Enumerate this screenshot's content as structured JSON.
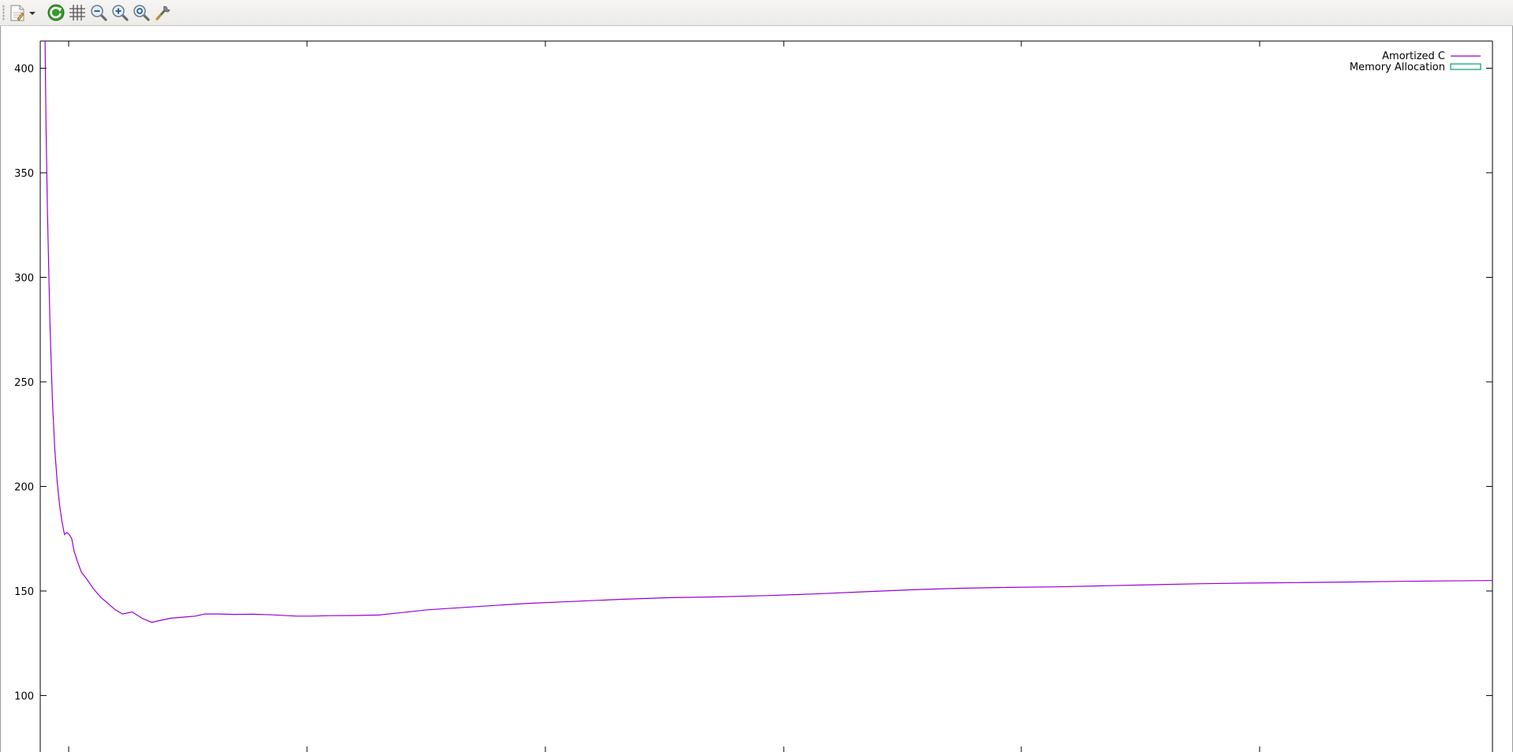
{
  "toolbar": {
    "buttons": [
      {
        "name": "export-button",
        "icon": "document-export-icon"
      },
      {
        "name": "replot-button",
        "icon": "refresh-icon"
      },
      {
        "name": "grid-button",
        "icon": "grid-icon"
      },
      {
        "name": "zoom-out-button",
        "icon": "zoom-out-icon"
      },
      {
        "name": "zoom-in-button",
        "icon": "zoom-in-icon"
      },
      {
        "name": "zoom-reset-button",
        "icon": "zoom-reset-icon"
      },
      {
        "name": "settings-button",
        "icon": "wrench-icon"
      }
    ]
  },
  "chart_data": {
    "type": "line",
    "title": "",
    "xlabel": "",
    "ylabel": "",
    "ylim": [
      73,
      413
    ],
    "xlim": [
      0,
      300
    ],
    "yticks": [
      100,
      150,
      200,
      250,
      300,
      350,
      400
    ],
    "grid": false,
    "legend_position": "top-right",
    "series": [
      {
        "name": "Amortized C",
        "color": "#9400d3",
        "style": "line",
        "x": [
          1.0,
          1.2,
          1.5,
          2.0,
          2.5,
          3.0,
          3.5,
          4.0,
          4.5,
          5.0,
          5.5,
          6.0,
          6.5,
          7.0,
          7.7,
          8.5,
          9.5,
          11,
          12.5,
          14,
          15.5,
          17,
          19,
          21,
          23,
          25,
          27,
          29.5,
          32,
          34,
          37,
          40,
          44,
          48,
          51,
          53,
          56,
          60,
          65,
          70,
          80,
          90,
          100,
          110,
          120,
          130,
          140,
          150,
          160,
          170,
          180,
          190,
          200,
          210,
          220,
          230,
          240,
          250,
          260,
          270,
          280,
          290,
          300
        ],
        "y": [
          413,
          370,
          330,
          278,
          242,
          218,
          202,
          191,
          183,
          177,
          178,
          177,
          175,
          169,
          164,
          159,
          156,
          151,
          147,
          144,
          141,
          139,
          140,
          137,
          135,
          136,
          137,
          137.5,
          138,
          139,
          139,
          138.8,
          138.9,
          138.6,
          138.2,
          138.0,
          138.0,
          138.2,
          138.3,
          138.5,
          141,
          142.5,
          144,
          145,
          146,
          146.8,
          147.2,
          147.8,
          148.6,
          149.6,
          150.6,
          151.3,
          151.7,
          152.0,
          152.5,
          153.0,
          153.5,
          153.8,
          154.0,
          154.3,
          154.6,
          154.8,
          155.0
        ]
      },
      {
        "name": "Memory Allocation",
        "color": "#009e73",
        "style": "boxes",
        "x": [],
        "y": []
      }
    ]
  }
}
